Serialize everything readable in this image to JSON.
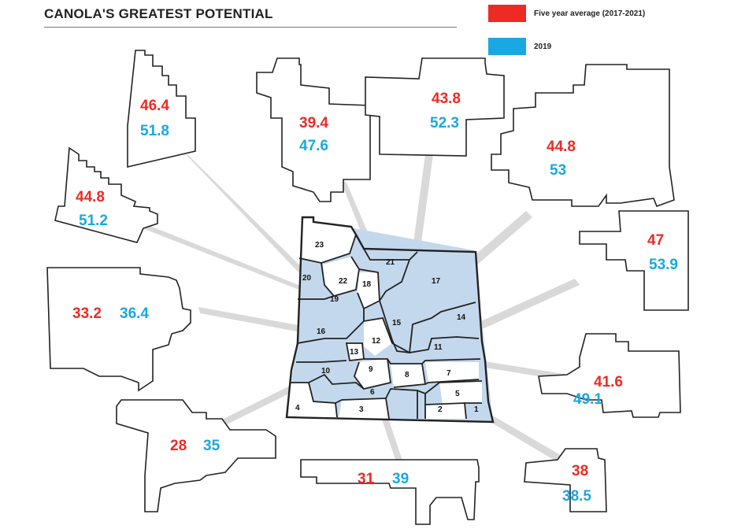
{
  "title": "CANOLA'S GREATEST POTENTIAL",
  "legend": [
    {
      "label": "Five year average (2017-2021)",
      "color": "#ee2a24"
    },
    {
      "label": "2019",
      "color": "#19a8e2"
    }
  ],
  "colors": {
    "five_year": "#ee2a24",
    "year_2019": "#19a8e2",
    "shaded_zone": "#c3d8ec"
  },
  "region_numbers": [
    "1",
    "2",
    "3",
    "4",
    "5",
    "6",
    "7",
    "8",
    "9",
    "10",
    "11",
    "12",
    "13",
    "14",
    "15",
    "16",
    "17",
    "18",
    "19",
    "20",
    "21",
    "22",
    "23"
  ],
  "callouts": [
    {
      "zone": "20",
      "five_year": "46.4",
      "y2019": "51.8"
    },
    {
      "zone": "19",
      "five_year": "39.4",
      "y2019": "47.6"
    },
    {
      "zone": "21",
      "five_year": "43.8",
      "y2019": "52.3"
    },
    {
      "zone": "17",
      "five_year": "44.8",
      "y2019": "53"
    },
    {
      "zone": "22",
      "five_year": "44.8",
      "y2019": "51.2"
    },
    {
      "zone": "14",
      "five_year": "47",
      "y2019": "53.9"
    },
    {
      "zone": "16",
      "five_year": "33.2",
      "y2019": "36.4"
    },
    {
      "zone": "11",
      "five_year": "41.6",
      "y2019": "49.1"
    },
    {
      "zone": "10",
      "five_year": "28",
      "y2019": "35"
    },
    {
      "zone": "6",
      "five_year": "31",
      "y2019": "39"
    },
    {
      "zone": "1",
      "five_year": "38",
      "y2019": "38.5"
    }
  ]
}
